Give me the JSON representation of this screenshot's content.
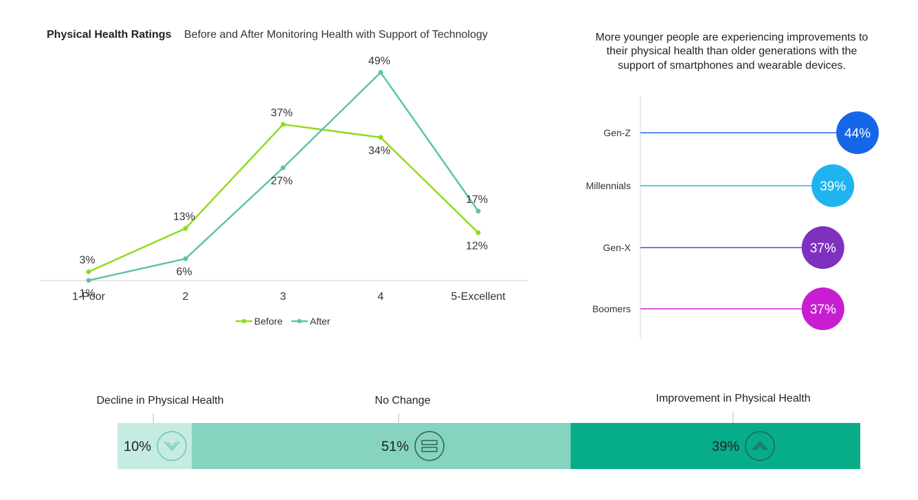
{
  "chart_data": [
    {
      "type": "line",
      "title": "Physical Health Ratings",
      "subtitle": "Before and After Monitoring Health with Support of Technology",
      "categories": [
        "1-Poor",
        "2",
        "3",
        "4",
        "5-Excellent"
      ],
      "series": [
        {
          "name": "Before",
          "values": [
            3,
            13,
            37,
            34,
            12
          ],
          "labels": [
            "3%",
            "13%",
            "37%",
            "34%",
            "12%"
          ],
          "color": "#8fdb1e"
        },
        {
          "name": "After",
          "values": [
            1,
            6,
            27,
            49,
            17
          ],
          "labels": [
            "1%",
            "6%",
            "27%",
            "49%",
            "17%"
          ],
          "color": "#5cc3a9"
        }
      ],
      "ylim": [
        0,
        55
      ],
      "grid": false,
      "legend": "bottom"
    },
    {
      "type": "bar",
      "title": "More younger people are experiencing improvements to their physical health than older generations with the support of smartphones and wearable devices.",
      "title_lines": [
        "More younger people are experiencing improvements to",
        "their physical health than older generations with the",
        "support of smartphones and wearable devices."
      ],
      "categories": [
        "Gen-Z",
        "Millennials",
        "Gen-X",
        "Boomers"
      ],
      "values": [
        44,
        39,
        37,
        37
      ],
      "labels": [
        "44%",
        "39%",
        "37%",
        "37%"
      ],
      "colors": [
        "#1667e8",
        "#1fb4f0",
        "#7e30bf",
        "#c81ed2"
      ]
    },
    {
      "type": "bar",
      "categories": [
        "Decline in Physical Health",
        "No Change",
        "Improvement in Physical Health"
      ],
      "values": [
        10,
        51,
        39
      ],
      "labels": [
        "10%",
        "51%",
        "39%"
      ],
      "icons": [
        "chevron-down-circle-icon",
        "equals-circle-icon",
        "chevron-up-circle-icon"
      ],
      "colors": [
        "#c6ebe2",
        "#86d3c0",
        "#07ad89"
      ]
    }
  ]
}
